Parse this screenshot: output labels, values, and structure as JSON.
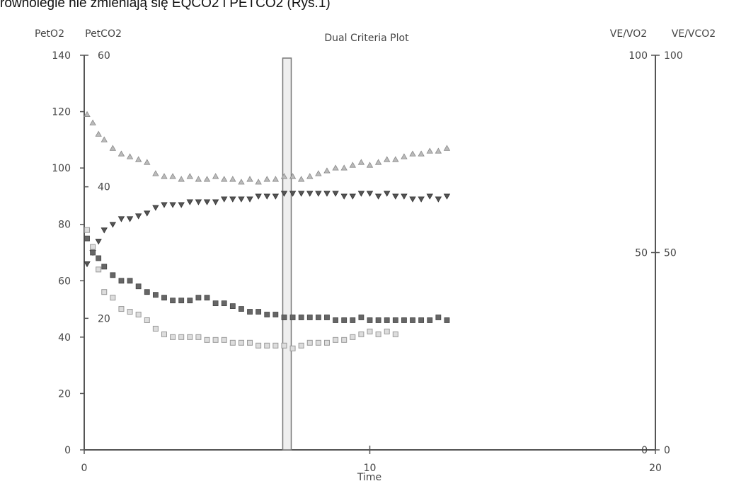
{
  "caption": "równolegle nie zmieniają się EQCO2 i PETCO2 (Rys.1)",
  "chart_data": {
    "type": "scatter",
    "title": "Dual Criteria Plot",
    "xlabel": "Time",
    "x_ticks": [
      "0",
      "10",
      "20"
    ],
    "xlim": [
      0,
      20
    ],
    "left_axis_labels": [
      "PetO2",
      "PetCO2"
    ],
    "right_axis_labels": [
      "VE/VO2",
      "VE/VCO2"
    ],
    "petO2_ticks": [
      "0",
      "20",
      "40",
      "60",
      "80",
      "100",
      "120",
      "140"
    ],
    "petO2_range": [
      0,
      140
    ],
    "petCO2_ticks": [
      "20",
      "40",
      "60"
    ],
    "petCO2_range": [
      0,
      60
    ],
    "ve_ticks": [
      "0",
      "50",
      "100"
    ],
    "ve_range": [
      0,
      100
    ],
    "ve_ticks_2": [
      "0",
      "50",
      "100"
    ],
    "threshold_marker_x": 7.1,
    "series": [
      {
        "name": "",
        "marker": "triangle-up",
        "axis": "petO2",
        "points": [
          [
            0.1,
            119
          ],
          [
            0.3,
            116
          ],
          [
            0.5,
            112
          ],
          [
            0.7,
            110
          ],
          [
            1.0,
            107
          ],
          [
            1.3,
            105
          ],
          [
            1.6,
            104
          ],
          [
            1.9,
            103
          ],
          [
            2.2,
            102
          ],
          [
            2.5,
            98
          ],
          [
            2.8,
            97
          ],
          [
            3.1,
            97
          ],
          [
            3.4,
            96
          ],
          [
            3.7,
            97
          ],
          [
            4.0,
            96
          ],
          [
            4.3,
            96
          ],
          [
            4.6,
            97
          ],
          [
            4.9,
            96
          ],
          [
            5.2,
            96
          ],
          [
            5.5,
            95
          ],
          [
            5.8,
            96
          ],
          [
            6.1,
            95
          ],
          [
            6.4,
            96
          ],
          [
            6.7,
            96
          ],
          [
            7.0,
            97
          ],
          [
            7.3,
            97
          ],
          [
            7.6,
            96
          ],
          [
            7.9,
            97
          ],
          [
            8.2,
            98
          ],
          [
            8.5,
            99
          ],
          [
            8.8,
            100
          ],
          [
            9.1,
            100
          ],
          [
            9.4,
            101
          ],
          [
            9.7,
            102
          ],
          [
            10.0,
            101
          ],
          [
            10.3,
            102
          ],
          [
            10.6,
            103
          ],
          [
            10.9,
            103
          ],
          [
            11.2,
            104
          ],
          [
            11.5,
            105
          ],
          [
            11.8,
            105
          ],
          [
            12.1,
            106
          ],
          [
            12.4,
            106
          ],
          [
            12.7,
            107
          ]
        ]
      },
      {
        "name": "",
        "marker": "triangle-down",
        "axis": "petO2",
        "points": [
          [
            0.1,
            66
          ],
          [
            0.3,
            70
          ],
          [
            0.5,
            74
          ],
          [
            0.7,
            78
          ],
          [
            1.0,
            80
          ],
          [
            1.3,
            82
          ],
          [
            1.6,
            82
          ],
          [
            1.9,
            83
          ],
          [
            2.2,
            84
          ],
          [
            2.5,
            86
          ],
          [
            2.8,
            87
          ],
          [
            3.1,
            87
          ],
          [
            3.4,
            87
          ],
          [
            3.7,
            88
          ],
          [
            4.0,
            88
          ],
          [
            4.3,
            88
          ],
          [
            4.6,
            88
          ],
          [
            4.9,
            89
          ],
          [
            5.2,
            89
          ],
          [
            5.5,
            89
          ],
          [
            5.8,
            89
          ],
          [
            6.1,
            90
          ],
          [
            6.4,
            90
          ],
          [
            6.7,
            90
          ],
          [
            7.0,
            91
          ],
          [
            7.3,
            91
          ],
          [
            7.6,
            91
          ],
          [
            7.9,
            91
          ],
          [
            8.2,
            91
          ],
          [
            8.5,
            91
          ],
          [
            8.8,
            91
          ],
          [
            9.1,
            90
          ],
          [
            9.4,
            90
          ],
          [
            9.7,
            91
          ],
          [
            10.0,
            91
          ],
          [
            10.3,
            90
          ],
          [
            10.6,
            91
          ],
          [
            10.9,
            90
          ],
          [
            11.2,
            90
          ],
          [
            11.5,
            89
          ],
          [
            11.8,
            89
          ],
          [
            12.1,
            90
          ],
          [
            12.4,
            89
          ],
          [
            12.7,
            90
          ]
        ]
      },
      {
        "name": "",
        "marker": "square",
        "axis": "petO2",
        "points": [
          [
            0.1,
            75
          ],
          [
            0.3,
            70
          ],
          [
            0.5,
            68
          ],
          [
            0.7,
            65
          ],
          [
            1.0,
            62
          ],
          [
            1.3,
            60
          ],
          [
            1.6,
            60
          ],
          [
            1.9,
            58
          ],
          [
            2.2,
            56
          ],
          [
            2.5,
            55
          ],
          [
            2.8,
            54
          ],
          [
            3.1,
            53
          ],
          [
            3.4,
            53
          ],
          [
            3.7,
            53
          ],
          [
            4.0,
            54
          ],
          [
            4.3,
            54
          ],
          [
            4.6,
            52
          ],
          [
            4.9,
            52
          ],
          [
            5.2,
            51
          ],
          [
            5.5,
            50
          ],
          [
            5.8,
            49
          ],
          [
            6.1,
            49
          ],
          [
            6.4,
            48
          ],
          [
            6.7,
            48
          ],
          [
            7.0,
            47
          ],
          [
            7.3,
            47
          ],
          [
            7.6,
            47
          ],
          [
            7.9,
            47
          ],
          [
            8.2,
            47
          ],
          [
            8.5,
            47
          ],
          [
            8.8,
            46
          ],
          [
            9.1,
            46
          ],
          [
            9.4,
            46
          ],
          [
            9.7,
            47
          ],
          [
            10.0,
            46
          ],
          [
            10.3,
            46
          ],
          [
            10.6,
            46
          ],
          [
            10.9,
            46
          ],
          [
            11.2,
            46
          ],
          [
            11.5,
            46
          ],
          [
            11.8,
            46
          ],
          [
            12.1,
            46
          ],
          [
            12.4,
            47
          ],
          [
            12.7,
            46
          ]
        ]
      },
      {
        "name": "",
        "marker": "square-open",
        "axis": "petO2",
        "points": [
          [
            0.1,
            78
          ],
          [
            0.3,
            72
          ],
          [
            0.5,
            64
          ],
          [
            0.7,
            56
          ],
          [
            1.0,
            54
          ],
          [
            1.3,
            50
          ],
          [
            1.6,
            49
          ],
          [
            1.9,
            48
          ],
          [
            2.2,
            46
          ],
          [
            2.5,
            43
          ],
          [
            2.8,
            41
          ],
          [
            3.1,
            40
          ],
          [
            3.4,
            40
          ],
          [
            3.7,
            40
          ],
          [
            4.0,
            40
          ],
          [
            4.3,
            39
          ],
          [
            4.6,
            39
          ],
          [
            4.9,
            39
          ],
          [
            5.2,
            38
          ],
          [
            5.5,
            38
          ],
          [
            5.8,
            38
          ],
          [
            6.1,
            37
          ],
          [
            6.4,
            37
          ],
          [
            6.7,
            37
          ],
          [
            7.0,
            37
          ],
          [
            7.3,
            36
          ],
          [
            7.6,
            37
          ],
          [
            7.9,
            38
          ],
          [
            8.2,
            38
          ],
          [
            8.5,
            38
          ],
          [
            8.8,
            39
          ],
          [
            9.1,
            39
          ],
          [
            9.4,
            40
          ],
          [
            9.7,
            41
          ],
          [
            10.0,
            42
          ],
          [
            10.3,
            41
          ],
          [
            10.6,
            42
          ],
          [
            10.9,
            41
          ]
        ]
      }
    ]
  }
}
